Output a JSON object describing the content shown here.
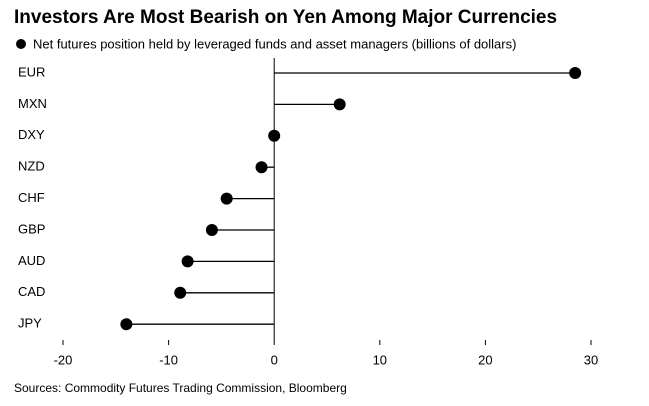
{
  "chart_data": {
    "type": "lollipop",
    "title": "Investors Are Most Bearish on Yen Among Major Currencies",
    "legend": "Net futures position held by leveraged funds and asset managers (billions of dollars)",
    "source": "Sources: Commodity Futures Trading Commission, Bloomberg",
    "categories": [
      "EUR",
      "MXN",
      "DXY",
      "NZD",
      "CHF",
      "GBP",
      "AUD",
      "CAD",
      "JPY"
    ],
    "values": [
      28.5,
      6.2,
      0,
      -1.2,
      -4.5,
      -5.9,
      -8.2,
      -8.9,
      -14.0
    ],
    "color": "#000000",
    "xlim": [
      -20,
      30
    ],
    "xticks": [
      -20,
      -10,
      0,
      10,
      20,
      30
    ]
  }
}
